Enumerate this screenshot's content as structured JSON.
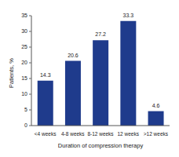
{
  "chart_data": {
    "type": "bar",
    "categories": [
      "<4 weeks",
      "4-8 weeks",
      "8-12 weeks",
      "12 weeks",
      ">12 weeks"
    ],
    "values": [
      14.3,
      20.6,
      27.2,
      33.3,
      4.6
    ],
    "color": "#1f3b8c",
    "ylim": [
      0,
      35
    ],
    "yticks": [
      0,
      5,
      10,
      15,
      20,
      25,
      30,
      35
    ],
    "grid": false,
    "data_labels": true,
    "x_label": "Duration of compression therapy",
    "y_label": "Patients, %"
  }
}
